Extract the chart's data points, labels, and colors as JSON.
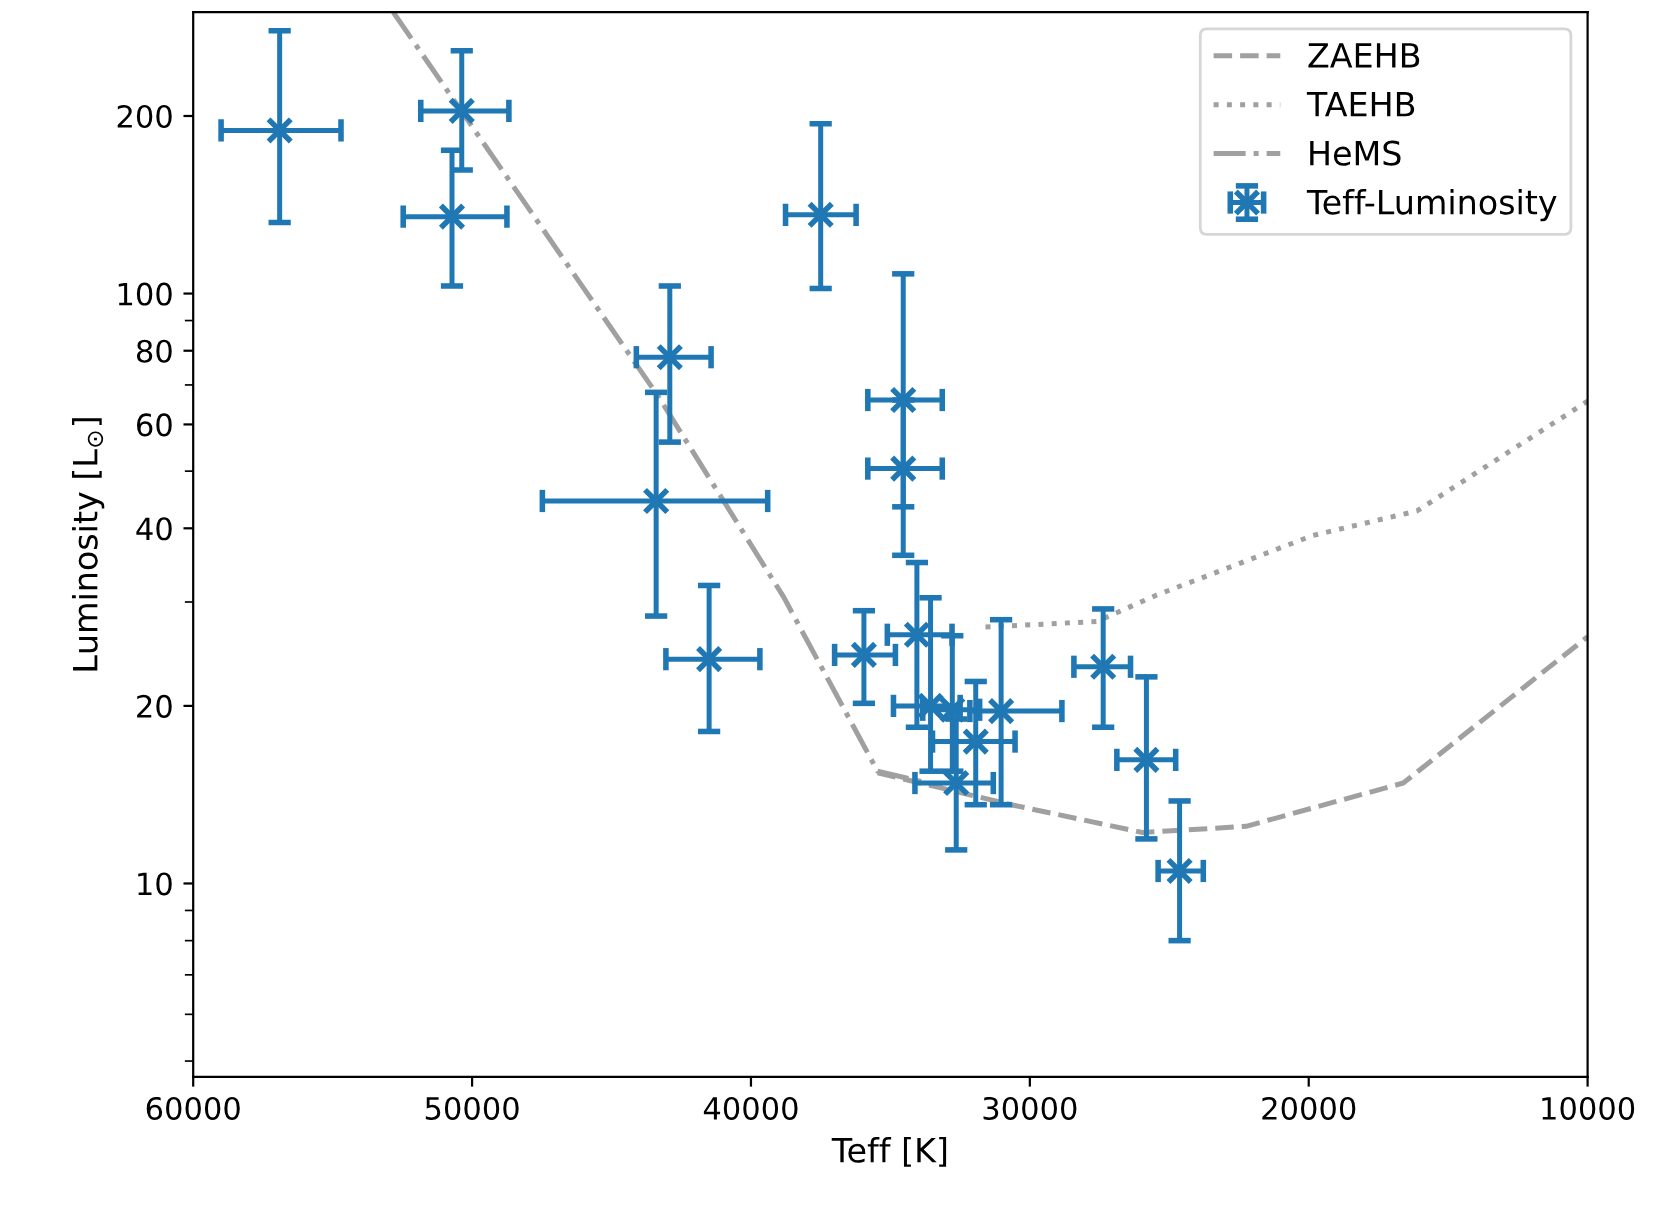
{
  "chart_data": {
    "type": "scatter",
    "xlabel": "Teff [K]",
    "ylabel": "Luminosity [L$_{⊙}$]",
    "log": "y",
    "legend": "top right",
    "grid": false,
    "xlim": [
      60000,
      10000
    ],
    "xticks": [
      60000,
      50000,
      40000,
      30000,
      20000,
      10000
    ],
    "ylim": [
      4.7,
      300
    ],
    "yticks": [
      {
        "value": 5,
        "label": null
      },
      {
        "value": 6,
        "label": null
      },
      {
        "value": 7,
        "label": null
      },
      {
        "value": 8,
        "label": null
      },
      {
        "value": 9,
        "label": null
      },
      10,
      20,
      {
        "value": 30,
        "label": null
      },
      40,
      {
        "value": 50,
        "label": null
      },
      60,
      {
        "value": 70,
        "label": null
      },
      80,
      {
        "value": 90,
        "label": null
      },
      100,
      200
    ],
    "series": [
      {
        "name": "ZAEHB",
        "type": "line",
        "color": "#a0a0a0",
        "line_style": "dashed",
        "marker": "none",
        "x": [
          35460,
          30670,
          25960,
          22240,
          16610,
          10000
        ],
        "values": [
          15.4,
          13.6,
          12.2,
          12.5,
          14.8,
          26.2
        ]
      },
      {
        "name": "TAEHB",
        "type": "line",
        "color": "#a0a0a0",
        "line_style": "dotted",
        "marker": "none",
        "x": [
          31590,
          27600,
          25470,
          19850,
          16120,
          10000
        ],
        "values": [
          27.2,
          27.8,
          30.8,
          38.9,
          42.8,
          65.7
        ]
      },
      {
        "name": "HeMS",
        "type": "line",
        "color": "#a0a0a0",
        "line_style": "dashdot",
        "marker": "none",
        "x": [
          52830,
          43330,
          38830,
          35460,
          33140
        ],
        "values": [
          300,
          67,
          30.6,
          15.5,
          14.6
        ]
      },
      {
        "name": "Teff-Luminosity",
        "color": "#1f77b4",
        "marker": "cross",
        "x": [
          56900,
          50370,
          50720,
          42910,
          43400,
          41500,
          37500,
          34540,
          34540,
          35950,
          34050,
          33560,
          32780,
          31940,
          32640,
          31030,
          27370,
          25820,
          24630
        ],
        "values": [
          189,
          204,
          135,
          78,
          44.5,
          24,
          136,
          66,
          50.5,
          24.4,
          26.4,
          20,
          19.7,
          17.4,
          14.8,
          19.6,
          23.3,
          16.2,
          10.5
        ],
        "errors": [
          [
            132,
            279
          ],
          [
            162,
            258
          ],
          [
            103,
            175
          ],
          [
            56,
            103
          ],
          [
            28.4,
            68
          ],
          [
            18.1,
            32
          ],
          [
            102,
            194
          ],
          [
            43.5,
            108
          ],
          [
            36,
            66
          ],
          [
            20.2,
            29
          ],
          [
            18.4,
            35
          ],
          [
            15.5,
            30.5
          ],
          [
            15.5,
            26.3
          ],
          [
            13.6,
            22
          ],
          [
            11.4,
            19
          ],
          [
            13.6,
            28
          ],
          [
            18.4,
            29.2
          ],
          [
            11.9,
            22.4
          ],
          [
            8.0,
            13.8
          ]
        ],
        "xerrors": [
          [
            54700,
            59000
          ],
          [
            48680,
            51840
          ],
          [
            48750,
            52470
          ],
          [
            41430,
            44110
          ],
          [
            39400,
            47480
          ],
          [
            39680,
            43050
          ],
          [
            36230,
            38760
          ],
          [
            33140,
            35810
          ],
          [
            33140,
            35810
          ],
          [
            34820,
            37000
          ],
          [
            32790,
            35110
          ],
          [
            32500,
            34890
          ],
          [
            31800,
            33840
          ],
          [
            30530,
            33490
          ],
          [
            31310,
            34120
          ],
          [
            28850,
            32150
          ],
          [
            26390,
            28420
          ],
          [
            24770,
            26880
          ],
          [
            23780,
            25400
          ]
        ]
      }
    ]
  }
}
